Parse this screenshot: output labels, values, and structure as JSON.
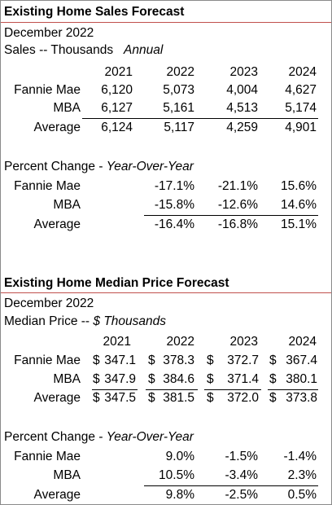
{
  "sales": {
    "title": "Existing Home Sales Forecast",
    "date": "December 2022",
    "units_label": "Sales -- Thousands",
    "units_note": "Annual",
    "years": [
      "2021",
      "2022",
      "2023",
      "2024"
    ],
    "rows": [
      {
        "label": "Fannie Mae",
        "values": [
          "6,120",
          "5,073",
          "4,004",
          "4,627"
        ]
      },
      {
        "label": "MBA",
        "values": [
          "6,127",
          "5,161",
          "4,513",
          "5,174"
        ]
      },
      {
        "label": "Average",
        "values": [
          "6,124",
          "5,117",
          "4,259",
          "4,901"
        ]
      }
    ],
    "pct_label": "Percent Change - ",
    "pct_note": "Year-Over-Year",
    "pct_rows": [
      {
        "label": "Fannie Mae",
        "values": [
          "-17.1%",
          "-21.1%",
          "15.6%"
        ]
      },
      {
        "label": "MBA",
        "values": [
          "-15.8%",
          "-12.6%",
          "14.6%"
        ]
      },
      {
        "label": "Average",
        "values": [
          "-16.4%",
          "-16.8%",
          "15.1%"
        ]
      }
    ]
  },
  "price": {
    "title": "Existing Home Median Price Forecast",
    "date": "December  2022",
    "units_label": "Median Price -- ",
    "units_note": "$ Thousands",
    "years": [
      "2021",
      "2022",
      "2023",
      "2024"
    ],
    "currency": "$",
    "rows": [
      {
        "label": "Fannie Mae",
        "values": [
          "347.1",
          "378.3",
          "372.7",
          "367.4"
        ]
      },
      {
        "label": "MBA",
        "values": [
          "347.9",
          "384.6",
          "371.4",
          "380.1"
        ]
      },
      {
        "label": "Average",
        "values": [
          "347.5",
          "381.5",
          "372.0",
          "373.8"
        ]
      }
    ],
    "pct_label": "Percent Change - ",
    "pct_note": "Year-Over-Year",
    "pct_rows": [
      {
        "label": "Fannie Mae",
        "values": [
          "9.0%",
          "-1.5%",
          "-1.4%"
        ]
      },
      {
        "label": "MBA",
        "values": [
          "10.5%",
          "-3.4%",
          "2.3%"
        ]
      },
      {
        "label": "Average",
        "values": [
          "9.8%",
          "-2.5%",
          "0.5%"
        ]
      }
    ]
  },
  "colors": {
    "title_rule": "#c0504d",
    "border": "#8a8a8a"
  }
}
